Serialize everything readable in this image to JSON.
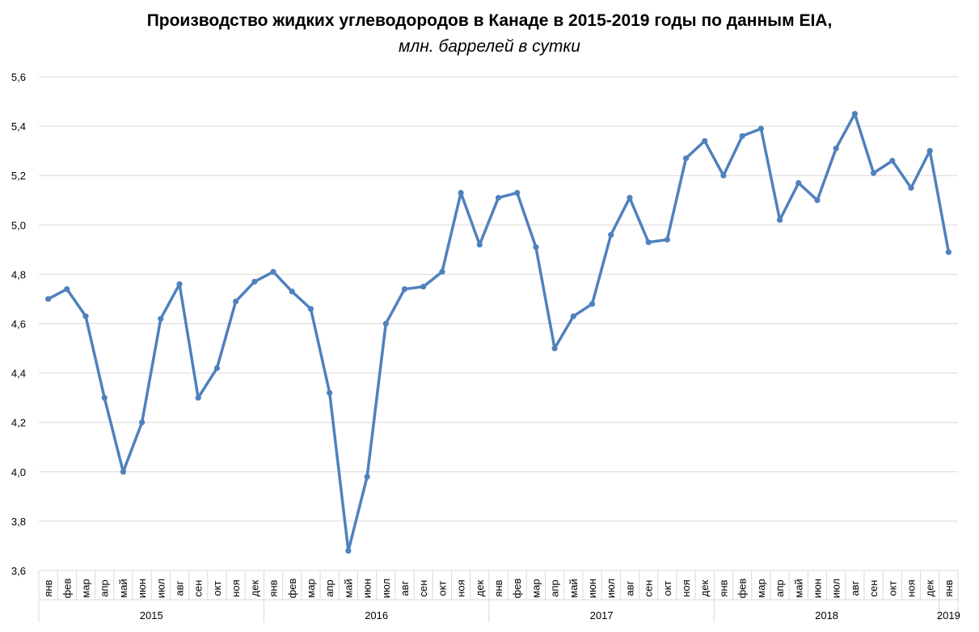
{
  "chart_data": {
    "type": "line",
    "title": "Производство жидких углеводородов в Канаде в 2015-2019 годы по данным EIA,",
    "subtitle": "млн. баррелей в сутки",
    "ylim": [
      3.6,
      5.6
    ],
    "yticks": [
      "3,6",
      "3,8",
      "4,0",
      "4,2",
      "4,4",
      "4,6",
      "4,8",
      "5,0",
      "5,2",
      "5,4",
      "5,6"
    ],
    "grid": true,
    "line_color": "#4F81BD",
    "years": [
      {
        "label": "2015",
        "months": 12
      },
      {
        "label": "2016",
        "months": 12
      },
      {
        "label": "2017",
        "months": 12
      },
      {
        "label": "2018",
        "months": 12
      },
      {
        "label": "2019",
        "months": 1
      }
    ],
    "categories": [
      "янв",
      "фев",
      "мар",
      "апр",
      "май",
      "июн",
      "июл",
      "авг",
      "сен",
      "окт",
      "ноя",
      "дек",
      "янв",
      "фев",
      "мар",
      "апр",
      "май",
      "июн",
      "июл",
      "авг",
      "сен",
      "окт",
      "ноя",
      "дек",
      "янв",
      "фев",
      "мар",
      "апр",
      "май",
      "июн",
      "июл",
      "авг",
      "сен",
      "окт",
      "ноя",
      "дек",
      "янв",
      "фев",
      "мар",
      "апр",
      "май",
      "июн",
      "июл",
      "авг",
      "сен",
      "окт",
      "ноя",
      "дек",
      "янв"
    ],
    "values": [
      4.7,
      4.74,
      4.63,
      4.3,
      4.0,
      4.2,
      4.62,
      4.76,
      4.3,
      4.42,
      4.69,
      4.77,
      4.81,
      4.73,
      4.66,
      4.32,
      3.68,
      3.98,
      4.6,
      4.74,
      4.75,
      4.81,
      5.13,
      4.92,
      5.11,
      5.13,
      4.91,
      4.5,
      4.63,
      4.68,
      4.96,
      5.11,
      4.93,
      4.94,
      5.27,
      5.34,
      5.2,
      5.36,
      5.39,
      5.02,
      5.17,
      5.1,
      5.31,
      5.45,
      5.21,
      5.26,
      5.15,
      5.3,
      4.89
    ]
  }
}
